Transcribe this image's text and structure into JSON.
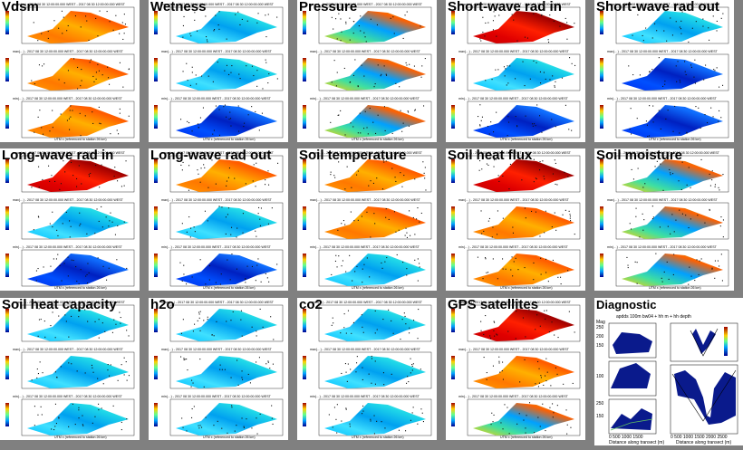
{
  "tiles": [
    {
      "title": "Vdsm",
      "kind": "warm"
    },
    {
      "title": "Wetness",
      "kind": "cool"
    },
    {
      "title": "Pressure",
      "kind": "mixed"
    },
    {
      "title": "Short-wave rad in",
      "kind": "hot"
    },
    {
      "title": "Short-wave rad out",
      "kind": "cool"
    },
    {
      "title": "Long-wave rad in",
      "kind": "hot"
    },
    {
      "title": "Long-wave rad out",
      "kind": "warm"
    },
    {
      "title": "Soil temperature",
      "kind": "warm"
    },
    {
      "title": "Soil heat flux",
      "kind": "warm"
    },
    {
      "title": "Soil moisture",
      "kind": "mixed"
    },
    {
      "title": "Soil heat capacity",
      "kind": "cool"
    },
    {
      "title": "h2o",
      "kind": "cool"
    },
    {
      "title": "co2",
      "kind": "cool"
    },
    {
      "title": "GPS satellites",
      "kind": "hot"
    }
  ],
  "subplot_titles": [
    "mean(…) - 2017 08 30 12:00:00.000 WEST - 2017 08 30 12:00:00.000 WEST",
    "max(…) - 2017 08 30 12:00:00.000 WEST - 2017 08 30 12:00:00.000 WEST",
    "min(…) - 2017 08 30 12:00:00.000 WEST - 2017 08 30 12:00:00.000 WEST"
  ],
  "xlabel": "UTM x (referenced to station 26 km)",
  "diagnostic": {
    "title": "Diagnostic",
    "subtitle": "apdds 100m bw04 + hh m + hh depth",
    "ylabel": "Mag",
    "xlabel": "Distance along transect (m)",
    "xticks": [
      "0",
      "500",
      "1000",
      "1500",
      "2000",
      "2500"
    ]
  },
  "chart_data": {
    "type": "heatmap",
    "panels": [
      "Vdsm",
      "Wetness",
      "Pressure",
      "Short-wave rad in",
      "Short-wave rad out",
      "Long-wave rad in",
      "Long-wave rad out",
      "Soil temperature",
      "Soil heat flux",
      "Soil moisture",
      "Soil heat capacity",
      "h2o",
      "co2",
      "GPS satellites",
      "Diagnostic"
    ],
    "rows_per_panel": 3,
    "grid": true
  }
}
